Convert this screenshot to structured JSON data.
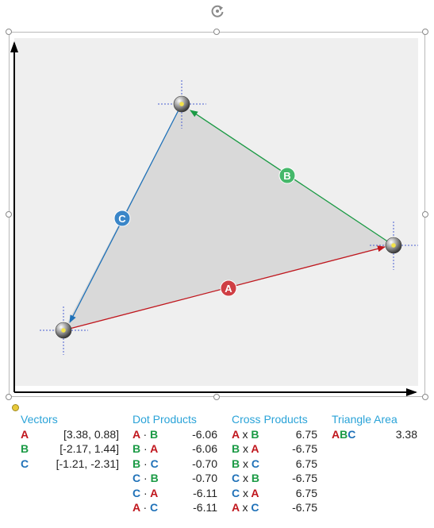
{
  "colors": {
    "vector_a": "#c0161d",
    "vector_b": "#1a9a44",
    "vector_c": "#1f71b8",
    "header": "#2aa3d8",
    "triangle_fill": "#d9d9d9"
  },
  "icons": {
    "rotate_handle": "rotate-icon",
    "vertex": "sphere-point-icon"
  },
  "chart": {
    "vector_labels": [
      "A",
      "B",
      "C"
    ]
  },
  "vectors": {
    "title": "Vectors",
    "rows": [
      {
        "name": "A",
        "value": "[3.38, 0.88]"
      },
      {
        "name": "B",
        "value": "[-2.17, 1.44]"
      },
      {
        "name": "C",
        "value": "[-1.21, -2.31]"
      }
    ]
  },
  "dot_products": {
    "title": "Dot Products",
    "operator": "·",
    "rows": [
      {
        "left": "A",
        "right": "B",
        "value": "-6.06"
      },
      {
        "left": "B",
        "right": "A",
        "value": "-6.06"
      },
      {
        "left": "B",
        "right": "C",
        "value": "-0.70"
      },
      {
        "left": "C",
        "right": "B",
        "value": "-0.70"
      },
      {
        "left": "C",
        "right": "A",
        "value": "-6.11"
      },
      {
        "left": "A",
        "right": "C",
        "value": "-6.11"
      }
    ]
  },
  "cross_products": {
    "title": "Cross Products",
    "operator": "x",
    "rows": [
      {
        "left": "A",
        "right": "B",
        "value": "6.75"
      },
      {
        "left": "B",
        "right": "A",
        "value": "-6.75"
      },
      {
        "left": "B",
        "right": "C",
        "value": "6.75"
      },
      {
        "left": "C",
        "right": "B",
        "value": "-6.75"
      },
      {
        "left": "C",
        "right": "A",
        "value": "6.75"
      },
      {
        "left": "A",
        "right": "C",
        "value": "-6.75"
      }
    ]
  },
  "triangle_area": {
    "title": "Triangle Area",
    "label": [
      "A",
      "B",
      "C"
    ],
    "value": "3.38"
  }
}
